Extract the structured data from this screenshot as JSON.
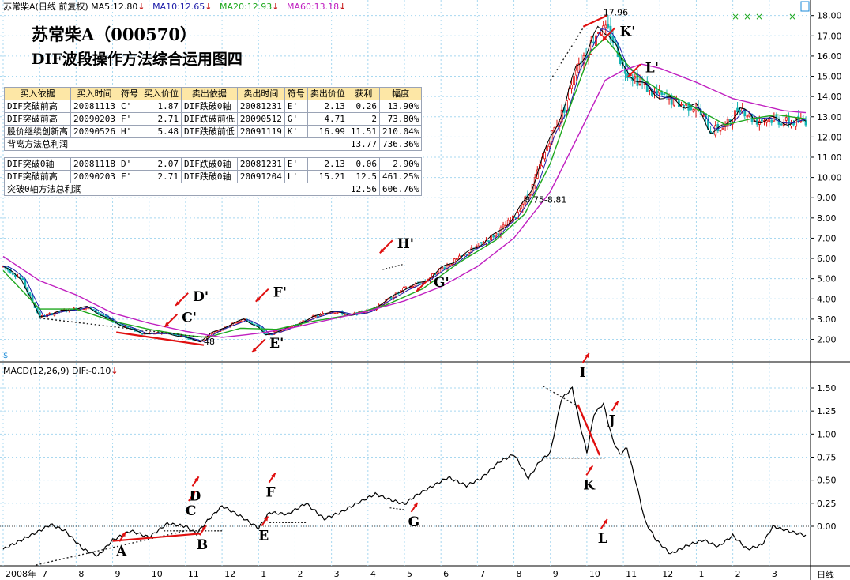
{
  "header": {
    "stock": "苏常柴A",
    "adjust": "(日线 前复权)",
    "ma": [
      {
        "label": "MA5:12.80",
        "color": "#000000"
      },
      {
        "label": "MA10:12.65",
        "color": "#1a1aa8"
      },
      {
        "label": "MA20:12.93",
        "color": "#1ea81e"
      },
      {
        "label": "MA60:13.18",
        "color": "#c020c0"
      }
    ],
    "down_arrow": "↓"
  },
  "title": {
    "line1": "苏常柴A（000570）",
    "line2": "DIF波段操作方法综合运用图四"
  },
  "trade_table": {
    "headers": [
      "买入依据",
      "买入时间",
      "符号",
      "买入价位",
      "卖出依据",
      "卖出时间",
      "符号",
      "卖出价位",
      "获利",
      "幅度"
    ],
    "group1": [
      [
        "DIF突破前高",
        "20081113",
        "C'",
        "1.87",
        "DIF跌破0轴",
        "20081231",
        "E'",
        "2.13",
        "0.26",
        "13.90%"
      ],
      [
        "DIF突破前高",
        "20090203",
        "F'",
        "2.71",
        "DIF跌破前低",
        "20090512",
        "G'",
        "4.71",
        "2",
        "73.80%"
      ],
      [
        "股价继续创新高",
        "20090526",
        "H'",
        "5.48",
        "DIF跌破前低",
        "20091119",
        "K'",
        "16.99",
        "11.51",
        "210.04%"
      ]
    ],
    "group1_total": {
      "label": "背离方法总利润",
      "profit": "13.77",
      "pct": "736.36%"
    },
    "group2": [
      [
        "DIF突破0轴",
        "20081118",
        "D'",
        "2.07",
        "DIF跌破0轴",
        "20081231",
        "E'",
        "2.13",
        "0.06",
        "2.90%"
      ],
      [
        "DIF突破前高",
        "20090203",
        "F'",
        "2.71",
        "DIF跌破0轴",
        "20091204",
        "L'",
        "15.21",
        "12.5",
        "461.25%"
      ]
    ],
    "group2_total": {
      "label": "突破0轴方法总利润",
      "profit": "12.56",
      "pct": "606.76%"
    }
  },
  "macd_header": {
    "label": "MACD(12,26,9)",
    "dif": "DIF:-0.10",
    "arrow": "↓"
  },
  "footer": {
    "start_year": "2008年",
    "period": "日线"
  },
  "chart_data": [
    {
      "type": "candlestick",
      "ylim": [
        1.2,
        18.3
      ],
      "yticks": [
        2,
        3,
        4,
        5,
        6,
        7,
        8,
        9,
        10,
        11,
        12,
        13,
        14,
        15,
        16,
        17,
        18
      ],
      "ytick_labels": [
        "2.00",
        "3.00",
        "4.00",
        "5.00",
        "6.00",
        "7.00",
        "8.00",
        "9.00",
        "10.00",
        "11.00",
        "12.00",
        "13.00",
        "14.00",
        "15.00",
        "16.00",
        "17.00",
        "18.00"
      ],
      "x_range_months": [
        0,
        22
      ],
      "price_anchors": [
        [
          0,
          5.6
        ],
        [
          0.5,
          5.0
        ],
        [
          1.0,
          3.1
        ],
        [
          1.6,
          3.4
        ],
        [
          2.3,
          3.6
        ],
        [
          3.1,
          2.8
        ],
        [
          3.8,
          2.3
        ],
        [
          4.5,
          2.3
        ],
        [
          5.2,
          2.0
        ],
        [
          5.4,
          1.9
        ],
        [
          5.7,
          2.3
        ],
        [
          6.2,
          2.7
        ],
        [
          6.6,
          3.0
        ],
        [
          7.0,
          2.6
        ],
        [
          7.2,
          2.2
        ],
        [
          7.6,
          2.45
        ],
        [
          8.0,
          2.7
        ],
        [
          8.5,
          3.1
        ],
        [
          9.0,
          3.4
        ],
        [
          9.5,
          3.2
        ],
        [
          10.0,
          3.4
        ],
        [
          10.5,
          3.9
        ],
        [
          11.0,
          4.5
        ],
        [
          11.6,
          4.9
        ],
        [
          12.0,
          5.5
        ],
        [
          12.5,
          6.0
        ],
        [
          13.0,
          6.6
        ],
        [
          13.5,
          7.2
        ],
        [
          14.0,
          8.0
        ],
        [
          14.5,
          9.5
        ],
        [
          15.0,
          12.0
        ],
        [
          15.4,
          13.5
        ],
        [
          15.7,
          15.5
        ],
        [
          16.0,
          16.2
        ],
        [
          16.3,
          17.3
        ],
        [
          16.6,
          17.2
        ],
        [
          16.8,
          16.5
        ],
        [
          17.0,
          15.4
        ],
        [
          17.4,
          14.8
        ],
        [
          17.8,
          14.2
        ],
        [
          18.2,
          13.9
        ],
        [
          18.6,
          13.6
        ],
        [
          19.0,
          13.5
        ],
        [
          19.4,
          12.3
        ],
        [
          19.8,
          12.5
        ],
        [
          20.2,
          13.5
        ],
        [
          20.6,
          12.8
        ],
        [
          21.0,
          12.9
        ],
        [
          21.6,
          12.7
        ],
        [
          22.0,
          12.8
        ]
      ],
      "ma_lines": [
        {
          "name": "MA20",
          "color": "#1ea81e",
          "anchors": [
            [
              0,
              5.4
            ],
            [
              1.0,
              3.5
            ],
            [
              2.0,
              3.5
            ],
            [
              3.0,
              2.9
            ],
            [
              4.0,
              2.5
            ],
            [
              5.0,
              2.2
            ],
            [
              5.6,
              2.1
            ],
            [
              6.5,
              2.55
            ],
            [
              7.5,
              2.5
            ],
            [
              8.5,
              2.9
            ],
            [
              9.5,
              3.2
            ],
            [
              10.5,
              3.7
            ],
            [
              11.5,
              4.5
            ],
            [
              12.5,
              5.8
            ],
            [
              13.5,
              6.9
            ],
            [
              14.3,
              8.2
            ],
            [
              15.0,
              10.7
            ],
            [
              15.6,
              13.8
            ],
            [
              16.1,
              16.2
            ],
            [
              16.5,
              16.9
            ],
            [
              17.0,
              15.8
            ],
            [
              17.4,
              15.0
            ],
            [
              18.0,
              14.3
            ],
            [
              18.6,
              13.8
            ],
            [
              19.2,
              13.2
            ],
            [
              19.8,
              12.6
            ],
            [
              20.5,
              12.9
            ],
            [
              21.2,
              13.1
            ],
            [
              22.0,
              12.9
            ]
          ]
        },
        {
          "name": "MA60",
          "color": "#c020c0",
          "anchors": [
            [
              0,
              6.1
            ],
            [
              1.0,
              4.9
            ],
            [
              2.0,
              4.2
            ],
            [
              3.0,
              3.3
            ],
            [
              4.0,
              2.8
            ],
            [
              5.0,
              2.4
            ],
            [
              6.0,
              2.1
            ],
            [
              7.0,
              2.3
            ],
            [
              8.0,
              2.6
            ],
            [
              9.0,
              3.0
            ],
            [
              10.0,
              3.4
            ],
            [
              11.0,
              3.9
            ],
            [
              12.0,
              4.6
            ],
            [
              13.0,
              5.6
            ],
            [
              14.0,
              7.0
            ],
            [
              15.0,
              9.3
            ],
            [
              15.8,
              12.2
            ],
            [
              16.5,
              14.8
            ],
            [
              17.0,
              15.3
            ],
            [
              17.5,
              15.6
            ],
            [
              18.0,
              15.4
            ],
            [
              19.0,
              14.7
            ],
            [
              20.0,
              13.9
            ],
            [
              20.7,
              13.6
            ],
            [
              21.4,
              13.3
            ],
            [
              22.0,
              13.2
            ]
          ]
        }
      ],
      "annotations": [
        {
          "label": "17.96",
          "x": 16.45,
          "y": 18.0
        },
        {
          "label": "8.75-8.81",
          "x": 14.3,
          "y": 8.75
        },
        {
          "label": "48",
          "x": 5.5,
          "y": 1.75
        },
        {
          "label": "K'",
          "x": 16.9,
          "y": 17.0
        },
        {
          "label": "L'",
          "x": 17.6,
          "y": 15.2
        },
        {
          "label": "H'",
          "x": 10.8,
          "y": 6.5
        },
        {
          "label": "G'",
          "x": 11.8,
          "y": 4.6
        },
        {
          "label": "F'",
          "x": 7.4,
          "y": 4.1
        },
        {
          "label": "E'",
          "x": 7.3,
          "y": 1.6
        },
        {
          "label": "D'",
          "x": 5.2,
          "y": 3.9
        },
        {
          "label": "C'",
          "x": 4.9,
          "y": 2.85
        }
      ]
    },
    {
      "type": "line",
      "ylim": [
        -0.42,
        1.68
      ],
      "yticks": [
        0,
        0.25,
        0.5,
        0.75,
        1.0,
        1.25,
        1.5
      ],
      "ytick_labels": [
        "0.00",
        "0.25",
        "0.50",
        "0.75",
        "1.00",
        "1.25",
        "1.50"
      ],
      "x": [
        0,
        0.5,
        1.0,
        1.3,
        1.7,
        2.2,
        2.6,
        3.0,
        3.5,
        4.0,
        4.5,
        5.0,
        5.3,
        5.6,
        6.0,
        6.5,
        7.0,
        7.3,
        7.8,
        8.3,
        8.8,
        9.3,
        9.7,
        10.2,
        10.6,
        11.0,
        11.3,
        11.7,
        12.2,
        12.7,
        13.1,
        13.6,
        14.0,
        14.4,
        14.7,
        15.0,
        15.3,
        15.6,
        15.8,
        16.0,
        16.2,
        16.45,
        16.7,
        16.9,
        17.1,
        17.3,
        17.6,
        17.9,
        18.3,
        18.8,
        19.2,
        19.6,
        20.0,
        20.4,
        20.8,
        21.1,
        21.5,
        22.0
      ],
      "values": [
        -0.25,
        -0.15,
        -0.05,
        0.02,
        -0.05,
        -0.25,
        -0.32,
        -0.15,
        -0.05,
        -0.12,
        0.03,
        0.0,
        -0.08,
        0.06,
        0.22,
        0.11,
        -0.02,
        0.15,
        0.13,
        0.25,
        0.08,
        0.16,
        0.25,
        0.35,
        0.29,
        0.24,
        0.33,
        0.42,
        0.53,
        0.44,
        0.52,
        0.7,
        0.78,
        0.52,
        0.7,
        0.8,
        1.38,
        1.5,
        1.12,
        0.8,
        1.22,
        1.33,
        0.95,
        0.78,
        0.85,
        0.55,
        0.05,
        -0.15,
        -0.3,
        -0.2,
        -0.15,
        -0.22,
        -0.1,
        -0.25,
        -0.2,
        0.0,
        -0.05,
        -0.1
      ],
      "annotations": [
        {
          "label": "A",
          "x": 3.1,
          "y": -0.32
        },
        {
          "label": "B",
          "x": 5.3,
          "y": -0.25
        },
        {
          "label": "C",
          "x": 5.0,
          "y": 0.12
        },
        {
          "label": "D",
          "x": 5.1,
          "y": 0.28
        },
        {
          "label": "E",
          "x": 7.0,
          "y": -0.15
        },
        {
          "label": "F",
          "x": 7.2,
          "y": 0.32
        },
        {
          "label": "G",
          "x": 11.1,
          "y": 0.0
        },
        {
          "label": "I",
          "x": 15.8,
          "y": 1.62
        },
        {
          "label": "J",
          "x": 16.6,
          "y": 1.1
        },
        {
          "label": "K",
          "x": 15.9,
          "y": 0.4
        },
        {
          "label": "L",
          "x": 16.3,
          "y": -0.18
        }
      ]
    }
  ],
  "x_axis": {
    "month_labels": [
      "2008年",
      "7",
      "8",
      "9",
      "10",
      "11",
      "12",
      "1",
      "2",
      "3",
      "4",
      "5",
      "6",
      "7",
      "8",
      "9",
      "10",
      "11",
      "12",
      "1",
      "2",
      "3"
    ],
    "month_positions": [
      0,
      1,
      2,
      3,
      4,
      5,
      6,
      7,
      8,
      9,
      10,
      11,
      12,
      13,
      14,
      15,
      16,
      17,
      18,
      19,
      20,
      21
    ]
  },
  "colors": {
    "up": "#e01010",
    "down": "#15b3b3",
    "grid": "#a8d8f0",
    "annot": "#e01010",
    "axis": "#000000"
  }
}
